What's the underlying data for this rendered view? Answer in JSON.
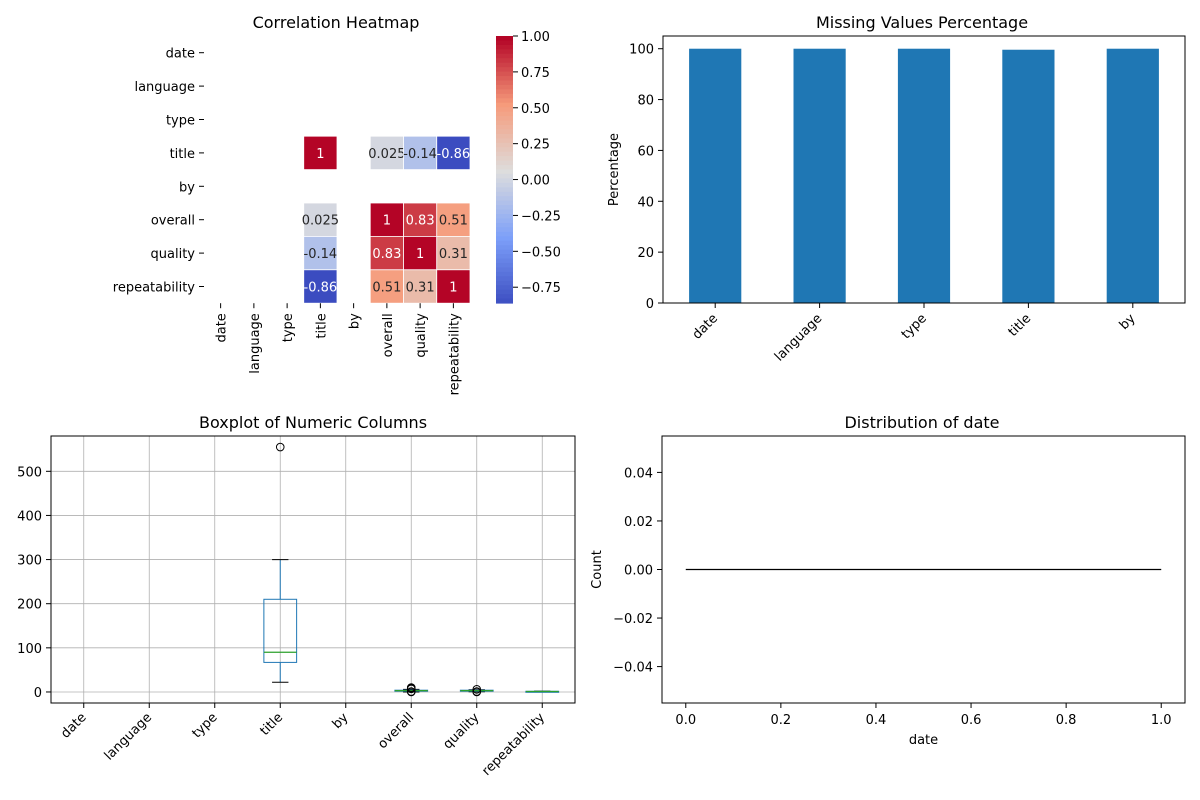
{
  "chart_data": [
    {
      "type": "heatmap",
      "title": "Correlation Heatmap",
      "rows": [
        "date",
        "language",
        "type",
        "title",
        "by",
        "overall",
        "quality",
        "repeatability"
      ],
      "cols": [
        "date",
        "language",
        "type",
        "title",
        "by",
        "overall",
        "quality",
        "repeatability"
      ],
      "values": [
        [
          null,
          null,
          null,
          null,
          null,
          null,
          null,
          null
        ],
        [
          null,
          null,
          null,
          null,
          null,
          null,
          null,
          null
        ],
        [
          null,
          null,
          null,
          null,
          null,
          null,
          null,
          null
        ],
        [
          null,
          null,
          null,
          1,
          null,
          0.025,
          -0.14,
          -0.86
        ],
        [
          null,
          null,
          null,
          null,
          null,
          null,
          null,
          null
        ],
        [
          null,
          null,
          null,
          0.025,
          null,
          1,
          0.83,
          0.51
        ],
        [
          null,
          null,
          null,
          -0.14,
          null,
          0.83,
          1,
          0.31
        ],
        [
          null,
          null,
          null,
          -0.86,
          null,
          0.51,
          0.31,
          1
        ]
      ],
      "labels": [
        [
          null,
          null,
          null,
          null,
          null,
          null,
          null,
          null
        ],
        [
          null,
          null,
          null,
          null,
          null,
          null,
          null,
          null
        ],
        [
          null,
          null,
          null,
          null,
          null,
          null,
          null,
          null
        ],
        [
          null,
          null,
          null,
          "1",
          null,
          "0.025",
          "-0.14",
          "-0.86"
        ],
        [
          null,
          null,
          null,
          null,
          null,
          null,
          null,
          null
        ],
        [
          null,
          null,
          null,
          "0.025",
          null,
          "1",
          "0.83",
          "0.51"
        ],
        [
          null,
          null,
          null,
          "-0.14",
          null,
          "0.83",
          "1",
          "0.31"
        ],
        [
          null,
          null,
          null,
          "-0.86",
          null,
          "0.51",
          "0.31",
          "1"
        ]
      ],
      "colormap": "coolwarm",
      "vmin": -0.86,
      "vmax": 1,
      "colorbar_ticks": [
        1.0,
        0.75,
        0.5,
        0.25,
        0.0,
        -0.25,
        -0.5,
        -0.75
      ],
      "colorbar_tick_labels": [
        "1.00",
        "0.75",
        "0.50",
        "0.25",
        "0.00",
        "−0.25",
        "−0.50",
        "−0.75"
      ]
    },
    {
      "type": "bar",
      "title": "Missing Values Percentage",
      "categories": [
        "date",
        "language",
        "type",
        "title",
        "by"
      ],
      "values": [
        100,
        100,
        100,
        99.6,
        100
      ],
      "xlabel": "",
      "ylabel": "Percentage",
      "ylim": [
        0,
        105
      ],
      "yticks": [
        0,
        20,
        40,
        60,
        80,
        100
      ],
      "bar_color": "#1f77b4"
    },
    {
      "type": "boxplot",
      "title": "Boxplot of Numeric Columns",
      "categories": [
        "date",
        "language",
        "type",
        "title",
        "by",
        "overall",
        "quality",
        "repeatability"
      ],
      "ylim": [
        -25,
        580
      ],
      "yticks": [
        0,
        100,
        200,
        300,
        400,
        500
      ],
      "grid": true,
      "boxes": [
        null,
        null,
        null,
        {
          "whislo": 22,
          "q1": 67,
          "med": 90,
          "q3": 210,
          "whishi": 300,
          "fliers": [
            555
          ]
        },
        null,
        {
          "whislo": 0,
          "q1": 2,
          "med": 3,
          "q3": 4,
          "whishi": 6,
          "fliers": [
            0,
            1,
            7,
            8,
            9,
            10
          ]
        },
        {
          "whislo": 0.5,
          "q1": 2,
          "med": 3,
          "q3": 4,
          "whishi": 5,
          "fliers": [
            0,
            1,
            6
          ]
        },
        {
          "whislo": 0,
          "q1": 0.5,
          "med": 1,
          "q3": 1.5,
          "whishi": 2,
          "fliers": []
        }
      ],
      "box_color": "#1f77b4",
      "median_color": "#2ca02c"
    },
    {
      "type": "line",
      "title": "Distribution of date",
      "xlabel": "date",
      "ylabel": "Count",
      "xlim": [
        -0.05,
        1.05
      ],
      "ylim": [
        -0.055,
        0.055
      ],
      "xticks": [
        0.0,
        0.2,
        0.4,
        0.6,
        0.8,
        1.0
      ],
      "xtick_labels": [
        "0.0",
        "0.2",
        "0.4",
        "0.6",
        "0.8",
        "1.0"
      ],
      "yticks": [
        0.04,
        0.02,
        0.0,
        -0.02,
        -0.04
      ],
      "ytick_labels": [
        "0.04",
        "0.02",
        "0.00",
        "−0.02",
        "−0.04"
      ],
      "x": [
        0.0,
        1.0
      ],
      "y": [
        0,
        0
      ]
    }
  ]
}
